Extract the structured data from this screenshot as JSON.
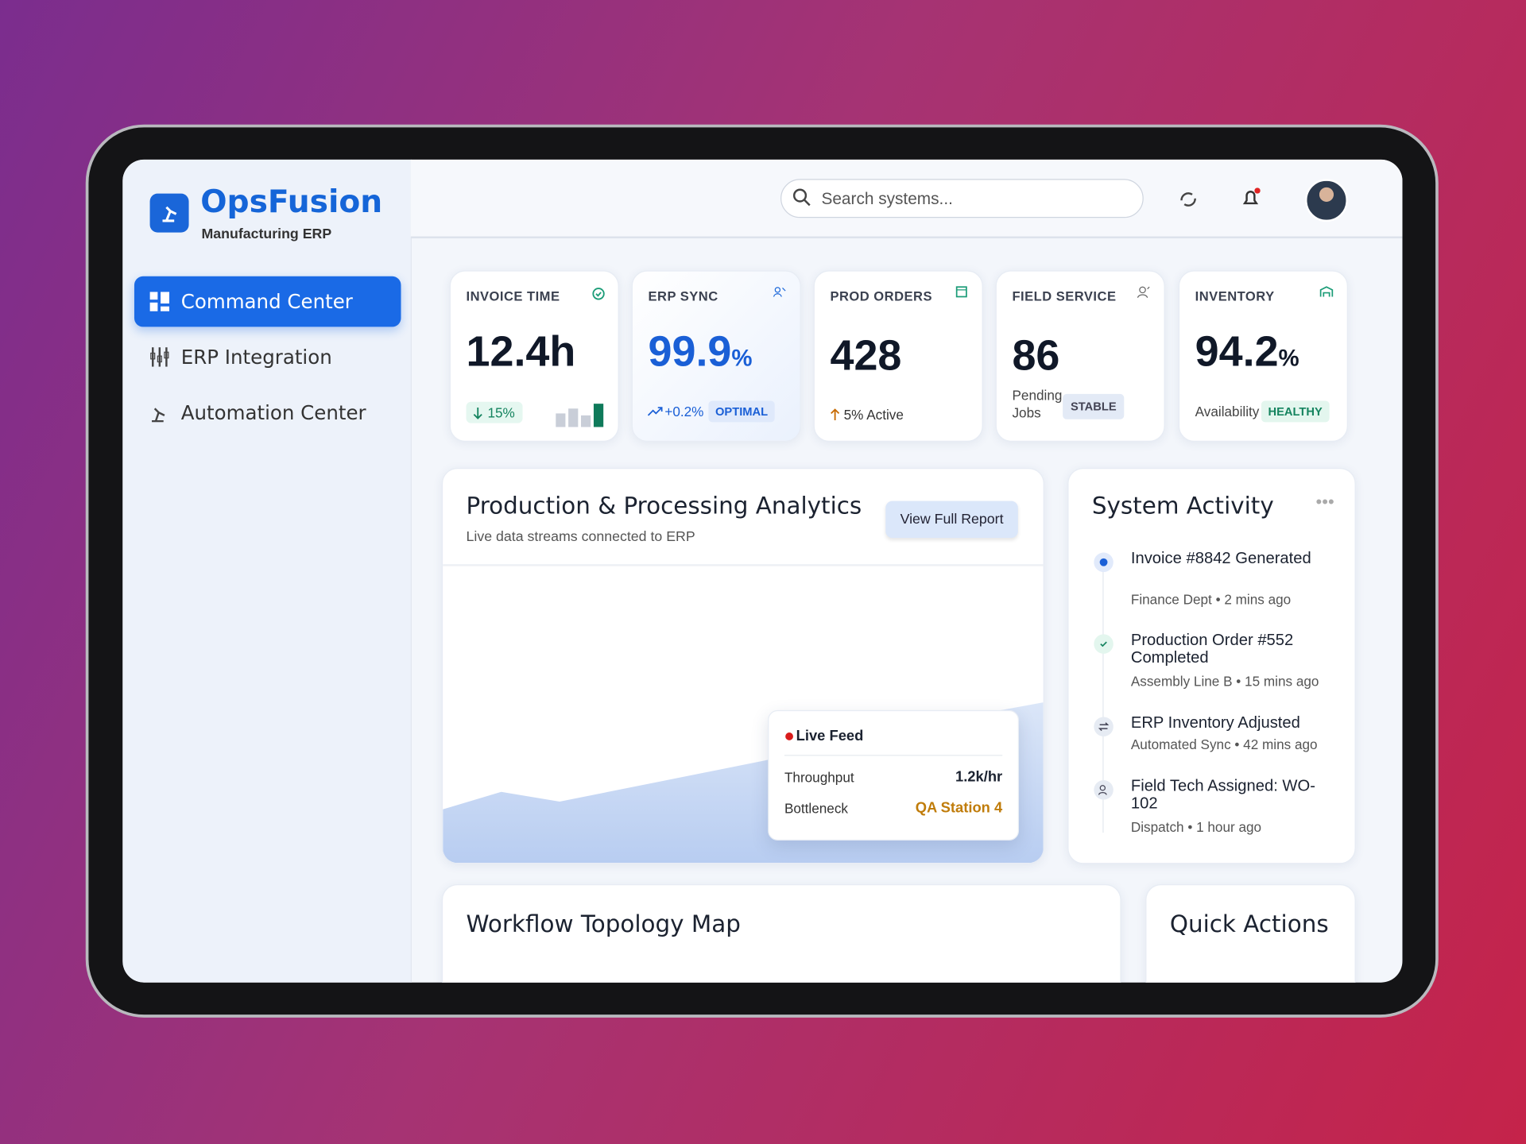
{
  "brand": {
    "name": "OpsFusion",
    "subtitle": "Manufacturing ERP"
  },
  "nav": [
    "Command Center",
    "ERP Integration",
    "Automation Center"
  ],
  "search": {
    "placeholder": "Search systems..."
  },
  "kpis": [
    {
      "label": "INVOICE TIME",
      "value": "12.4h",
      "delta": "15%"
    },
    {
      "label": "ERP SYNC",
      "value": "99.9",
      "unit": "%",
      "delta": "+0.2%",
      "badge": "OPTIMAL"
    },
    {
      "label": "PROD ORDERS",
      "value": "428",
      "delta": "5% Active"
    },
    {
      "label": "FIELD SERVICE",
      "value": "86",
      "note": "Pending Jobs",
      "badge": "STABLE"
    },
    {
      "label": "INVENTORY",
      "value": "94.2",
      "unit": "%",
      "note": "Availability",
      "badge": "HEALTHY"
    }
  ],
  "analytics": {
    "title": "Production & Processing Analytics",
    "subtitle": "Live data streams connected to ERP",
    "button": "View Full Report",
    "live_feed": {
      "title": "Live Feed",
      "rows": [
        [
          "Throughput",
          "1.2k/hr"
        ],
        [
          "Bottleneck",
          "QA Station 4"
        ]
      ]
    }
  },
  "activity": {
    "title": "System Activity",
    "items": [
      {
        "title": "Invoice #8842 Generated",
        "meta": "Finance Dept • 2 mins ago"
      },
      {
        "title": "Production Order #552 Completed",
        "meta": "Assembly Line B • 15 mins ago"
      },
      {
        "title": "ERP Inventory Adjusted",
        "meta": "Automated Sync • 42 mins ago"
      },
      {
        "title": "Field Tech Assigned: WO-102",
        "meta": "Dispatch • 1 hour ago"
      }
    ]
  },
  "sections": [
    "Workflow Topology Map",
    "Quick Actions"
  ]
}
